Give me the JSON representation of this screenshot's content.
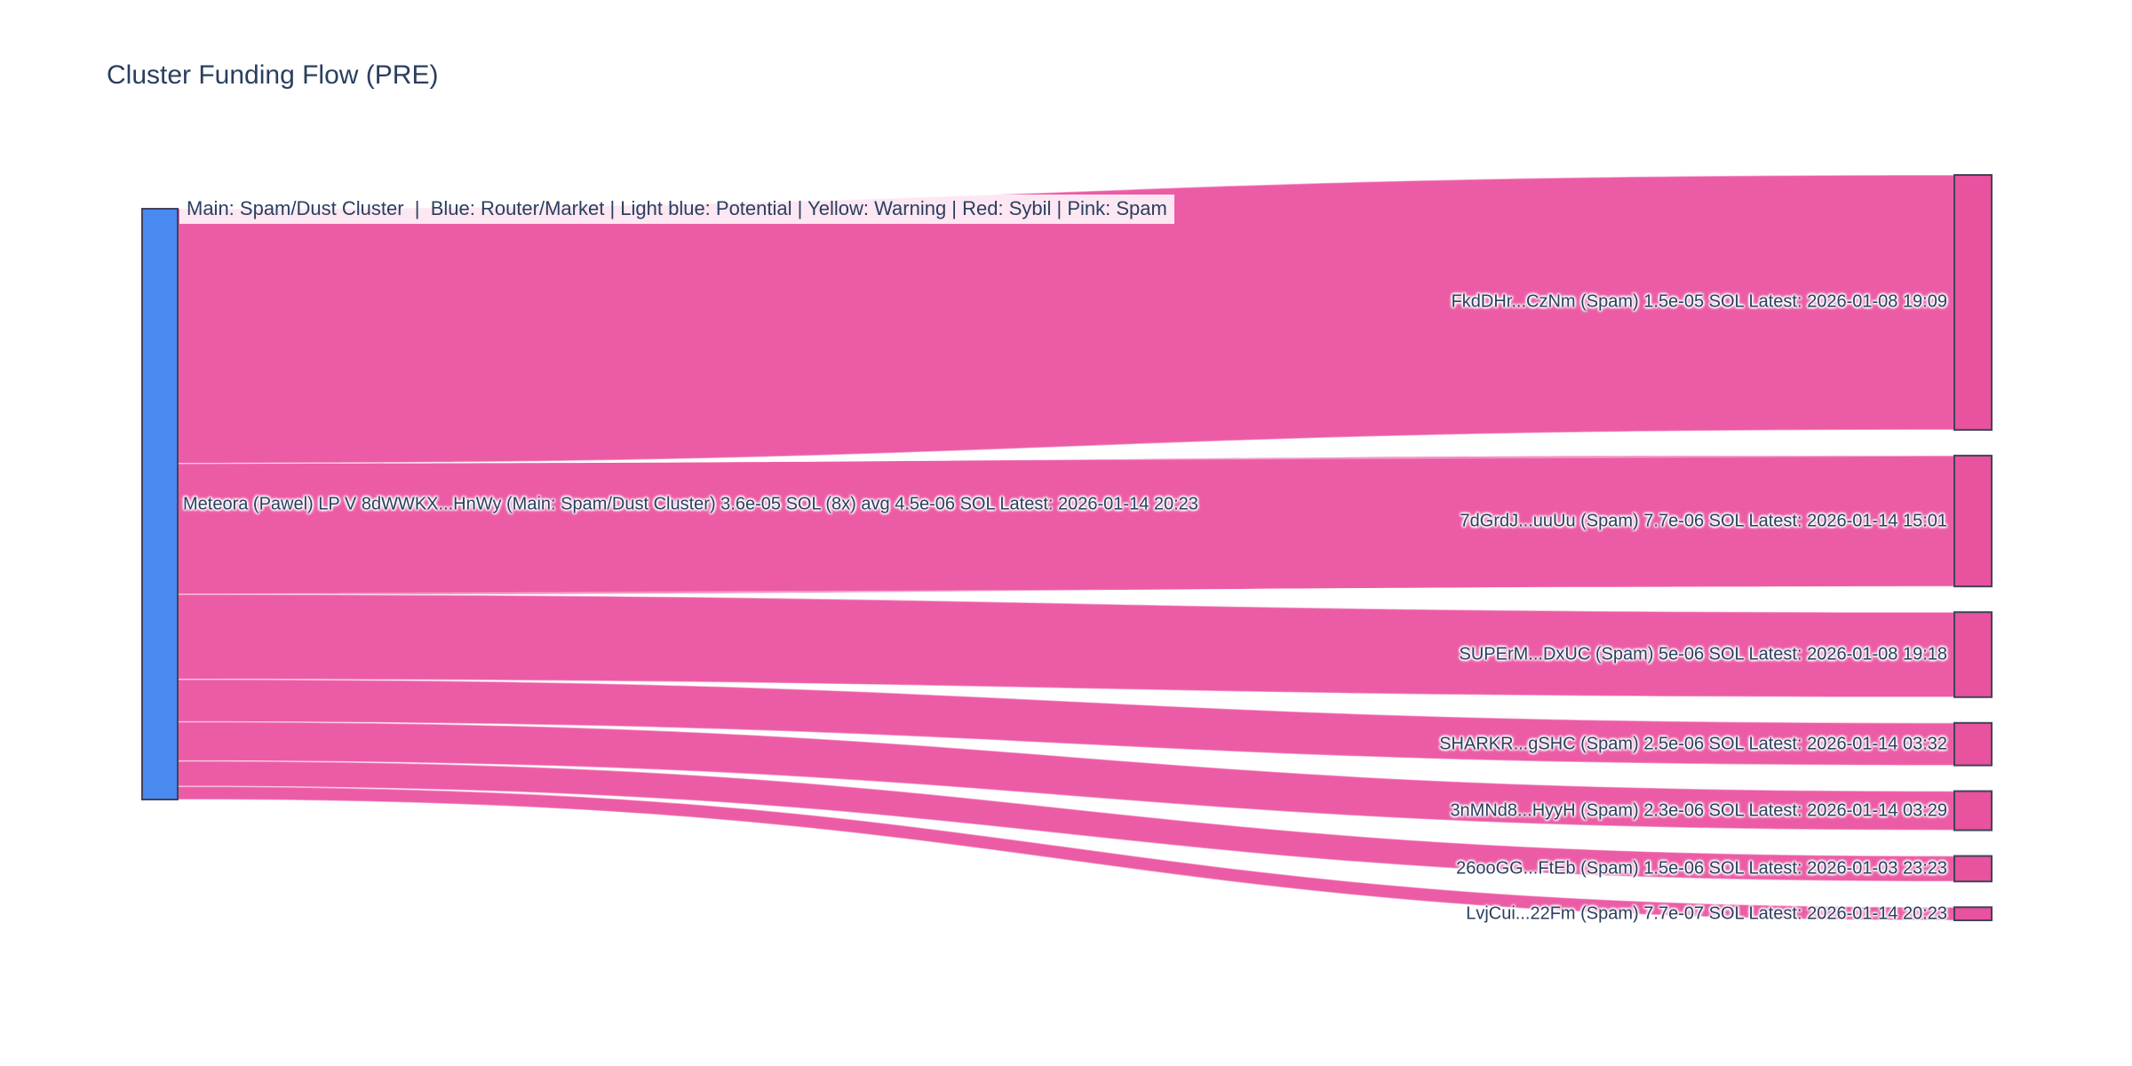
{
  "title": "Cluster Funding Flow (PRE)",
  "legend": "Main: Spam/Dust Cluster  |  Blue: Router/Market | Light blue: Potential | Yellow: Warning | Red: Sybil | Pink: Spam",
  "colors": {
    "title_text": "#2a3f5f",
    "label_text": "#2a3f5f",
    "source_node": "#4a89f0",
    "target_node": "#e8529f",
    "link": "#ec5ca6",
    "node_border": "#414458",
    "legend_background": "rgba(255,255,255,0.85)",
    "background": "#ffffff"
  },
  "chart_data": {
    "type": "sankey",
    "orientation": "horizontal",
    "title": "Cluster Funding Flow (PRE)",
    "legend_note": "Main: Spam/Dust Cluster  |  Blue: Router/Market | Light blue: Potential | Yellow: Warning | Red: Sybil | Pink: Spam",
    "source_node": {
      "label": "Meteora (Pawel) LP V 8dWWKX...HnWy (Main: Spam/Dust Cluster) 3.6e-05 SOL (8x) avg 4.5e-06 SOL Latest: 2026-01-14 20:23",
      "name": "Meteora (Pawel) LP V 8dWWKX...HnWy",
      "cluster": "Main: Spam/Dust Cluster",
      "total_sol": 3.6e-05,
      "tx_count": 8,
      "avg_sol": 4.5e-06,
      "latest": "2026-01-14 20:23",
      "color": "#4a89f0"
    },
    "links": [
      {
        "label": "FkdDHr...CzNm (Spam) 1.5e-05 SOL Latest: 2026-01-08 19:09",
        "target": "FkdDHr...CzNm",
        "category": "Spam",
        "value": 1.5e-05,
        "latest": "2026-01-08 19:09"
      },
      {
        "label": "7dGrdJ...uuUu (Spam) 7.7e-06 SOL Latest: 2026-01-14 15:01",
        "target": "7dGrdJ...uuUu",
        "category": "Spam",
        "value": 7.7e-06,
        "latest": "2026-01-14 15:01"
      },
      {
        "label": "SUPErM...DxUC (Spam) 5e-06 SOL Latest: 2026-01-08 19:18",
        "target": "SUPErM...DxUC",
        "category": "Spam",
        "value": 5e-06,
        "latest": "2026-01-08 19:18"
      },
      {
        "label": "SHARKR...gSHC (Spam) 2.5e-06 SOL Latest: 2026-01-14 03:32",
        "target": "SHARKR...gSHC",
        "category": "Spam",
        "value": 2.5e-06,
        "latest": "2026-01-14 03:32"
      },
      {
        "label": "3nMNd8...HyyH (Spam) 2.3e-06 SOL Latest: 2026-01-14 03:29",
        "target": "3nMNd8...HyyH",
        "category": "Spam",
        "value": 2.3e-06,
        "latest": "2026-01-14 03:29"
      },
      {
        "label": "26ooGG...FtEb (Spam) 1.5e-06 SOL Latest: 2026-01-03 23:23",
        "target": "26ooGG...FtEb",
        "category": "Spam",
        "value": 1.5e-06,
        "latest": "2026-01-03 23:23"
      },
      {
        "label": "LvjCui...22Fm (Spam) 7.7e-07 SOL Latest: 2026-01-14 20:23",
        "target": "LvjCui...22Fm",
        "category": "Spam",
        "value": 7.7e-07,
        "latest": "2026-01-14 20:23"
      }
    ]
  }
}
